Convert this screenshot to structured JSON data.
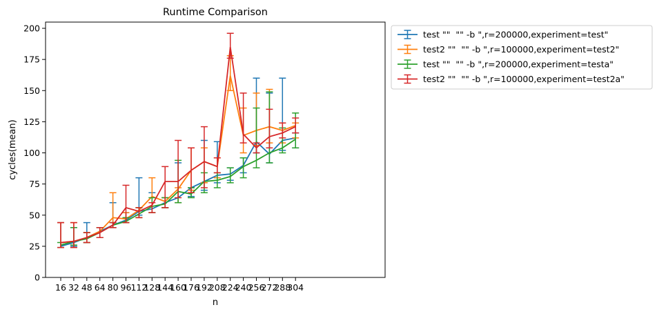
{
  "chart_data": {
    "type": "line",
    "title": "Runtime Comparison",
    "xlabel": "n",
    "ylabel": "cycles(mean)",
    "categories": [
      "16",
      "32",
      "48",
      "64",
      "80",
      "96",
      "112",
      "128",
      "144",
      "160",
      "176",
      "192",
      "208",
      "224",
      "240",
      "256",
      "272",
      "288",
      "304"
    ],
    "ylim": [
      0,
      205
    ],
    "yticks": [
      0,
      25,
      50,
      75,
      100,
      125,
      150,
      175,
      200
    ],
    "grid": false,
    "legend_position": "outside-right-top",
    "series": [
      {
        "name": "test \"\"  \"\" -b \",r=200000,experiment=test\"",
        "color": "#1f77b4",
        "values": [
          25,
          28,
          32,
          37,
          42,
          46,
          53,
          55,
          60,
          64,
          72,
          77,
          82,
          83,
          90,
          109,
          99,
          110,
          112
        ],
        "err_low": [
          24,
          25,
          28,
          32,
          40,
          44,
          50,
          52,
          56,
          60,
          65,
          70,
          76,
          78,
          84,
          100,
          92,
          102,
          104
        ],
        "err_high": [
          44,
          40,
          44,
          40,
          60,
          52,
          80,
          68,
          64,
          92,
          72,
          110,
          109,
          88,
          96,
          160,
          148,
          160,
          116
        ]
      },
      {
        "name": "test2 \"\"  \"\" -b \",r=100000,experiment=test2\"",
        "color": "#ff7f0e",
        "values": [
          28,
          29,
          32,
          37,
          48,
          47,
          54,
          65,
          61,
          71,
          86,
          93,
          89,
          162,
          114,
          118,
          121,
          118,
          122
        ],
        "err_low": [
          24,
          24,
          28,
          32,
          40,
          44,
          48,
          52,
          56,
          60,
          70,
          76,
          80,
          150,
          100,
          106,
          108,
          108,
          112
        ],
        "err_high": [
          44,
          44,
          36,
          40,
          68,
          52,
          56,
          80,
          64,
          72,
          104,
          104,
          96,
          178,
          136,
          148,
          151,
          124,
          124
        ]
      },
      {
        "name": "test \"\"  \"\" -b \",r=200000,experiment=testa\"",
        "color": "#2ca02c",
        "values": [
          26,
          29,
          31,
          36,
          42,
          45,
          51,
          57,
          59,
          69,
          67,
          77,
          78,
          81,
          89,
          94,
          100,
          104,
          111
        ],
        "err_low": [
          24,
          26,
          28,
          32,
          40,
          44,
          48,
          52,
          56,
          60,
          64,
          68,
          72,
          76,
          80,
          88,
          92,
          100,
          104
        ],
        "err_high": [
          28,
          40,
          36,
          40,
          44,
          48,
          56,
          64,
          64,
          94,
          72,
          84,
          84,
          88,
          96,
          136,
          149,
          120,
          132
        ]
      },
      {
        "name": "test2 \"\"  \"\" -b \",r=100000,experiment=test2a\"",
        "color": "#d62728",
        "values": [
          28,
          29,
          32,
          36,
          42,
          56,
          53,
          58,
          77,
          77,
          86,
          93,
          89,
          185,
          115,
          104,
          113,
          116,
          121
        ],
        "err_low": [
          24,
          24,
          28,
          32,
          40,
          44,
          48,
          52,
          56,
          64,
          68,
          72,
          84,
          176,
          108,
          100,
          104,
          112,
          116
        ],
        "err_high": [
          44,
          44,
          36,
          40,
          44,
          74,
          56,
          60,
          89,
          110,
          104,
          121,
          96,
          196,
          148,
          108,
          135,
          124,
          128
        ]
      }
    ]
  }
}
